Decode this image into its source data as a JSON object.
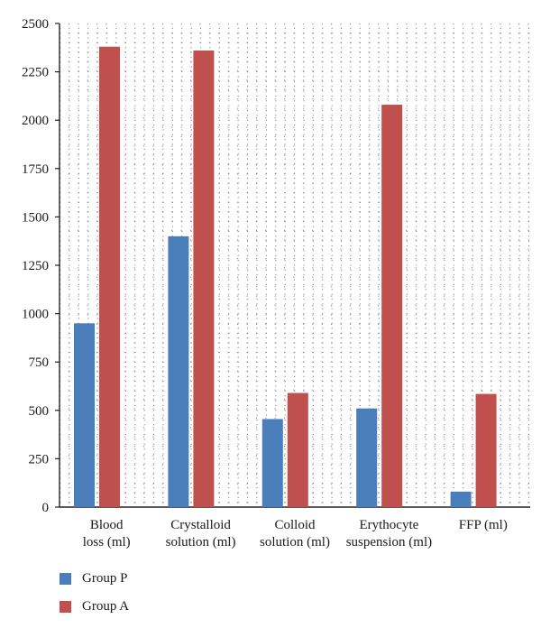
{
  "chart_data": {
    "type": "bar",
    "title": "",
    "xlabel": "",
    "ylabel": "",
    "categories": [
      [
        "Blood",
        "loss (ml)"
      ],
      [
        "Crystalloid",
        "solution (ml)"
      ],
      [
        "Colloid",
        "solution (ml)"
      ],
      [
        "Erythocyte",
        "suspension (ml)"
      ],
      [
        "FFP (ml)"
      ]
    ],
    "series": [
      {
        "name": "Group P",
        "color": "#4a7ebb",
        "values": [
          950,
          1400,
          455,
          510,
          80
        ]
      },
      {
        "name": "Group A",
        "color": "#c0504d",
        "values": [
          2380,
          2360,
          590,
          2080,
          585
        ]
      }
    ],
    "ylim": [
      0,
      2500
    ],
    "yticks": [
      0,
      250,
      500,
      750,
      1000,
      1250,
      1500,
      1750,
      2000,
      2250,
      2500
    ],
    "grid": "dotted",
    "legend_position": "bottom-left"
  }
}
